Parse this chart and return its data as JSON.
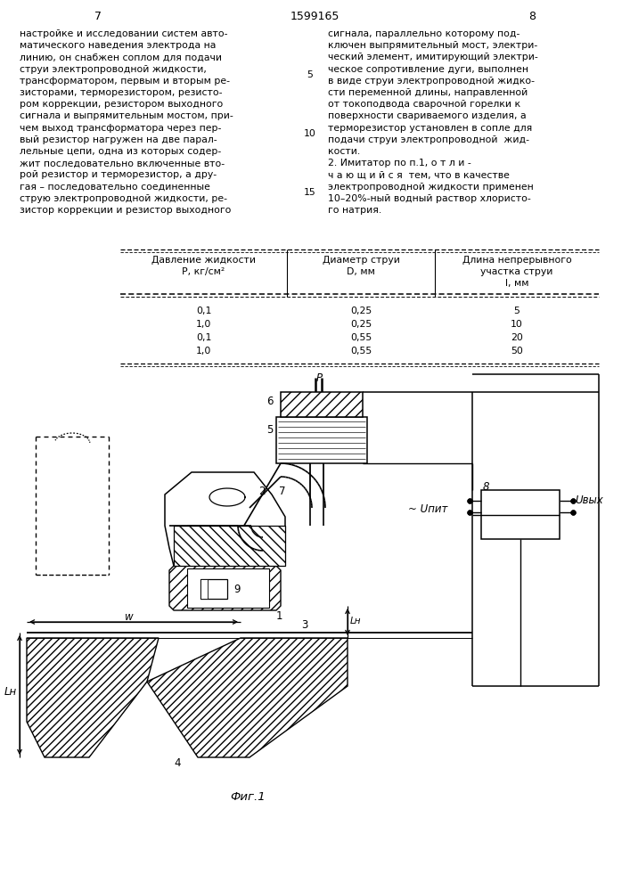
{
  "page_number_left": "7",
  "page_number_center": "1599165",
  "page_number_right": "8",
  "left_text": [
    "настройке и исследовании систем авто-",
    "матического наведения электрода на",
    "линию, он снабжен соплом для подачи",
    "струи электропроводной жидкости,",
    "трансформатором, первым и вторым ре-",
    "зисторами, терморезистором, резисто-",
    "ром коррекции, резистором выходного",
    "сигнала и выпрямительным мостом, при-",
    "чем выход трансформатора через пер-",
    "вый резистор нагружен на две парал-",
    "лельные цепи, одна из которых содер-",
    "жит последовательно включенные вто-",
    "рой резистор и терморезистор, а дру-",
    "гая – последовательно соединенные",
    "струю электропроводной жидкости, ре-",
    "зистор коррекции и резистор выходного"
  ],
  "right_text": [
    "сигнала, параллельно которому под-",
    "ключен выпрямительный мост, электри-",
    "ческий элемент, имитирующий электри-",
    "ческое сопротивление дуги, выполнен",
    "в виде струи электропроводной жидко-",
    "сти переменной длины, направленной",
    "от токоподвода сварочной горелки к",
    "поверхности свариваемого изделия, а",
    "терморезистор установлен в сопле для",
    "подачи струи электропроводной  жид-",
    "кости."
  ],
  "right_text2_line1": "2. Имитатор по п.1, о т л и -",
  "right_text2_line2": "ч а ю щ и й с я  тем, что в качестве",
  "right_text2_line3": "электропроводной жидкости применен",
  "right_text2_line4": "10–20%‑ный водный раствор хлористо-",
  "right_text2_line5": "го натрия.",
  "table_col1_hdr1": "Давление жидкости",
  "table_col1_hdr2": "P, кг/см²",
  "table_col2_hdr1": "Диаметр струи",
  "table_col2_hdr2": "D, мм",
  "table_col3_hdr1": "Длина непрерывного",
  "table_col3_hdr2": "участка струи",
  "table_col3_hdr3": "l, мм",
  "table_data": [
    [
      "0,1",
      "0,25",
      "5"
    ],
    [
      "1,0",
      "0,25",
      "10"
    ],
    [
      "0,1",
      "0,55",
      "20"
    ],
    [
      "1,0",
      "0,55",
      "50"
    ]
  ],
  "fig_caption": "Фиг.1",
  "bg_color": "#ffffff"
}
